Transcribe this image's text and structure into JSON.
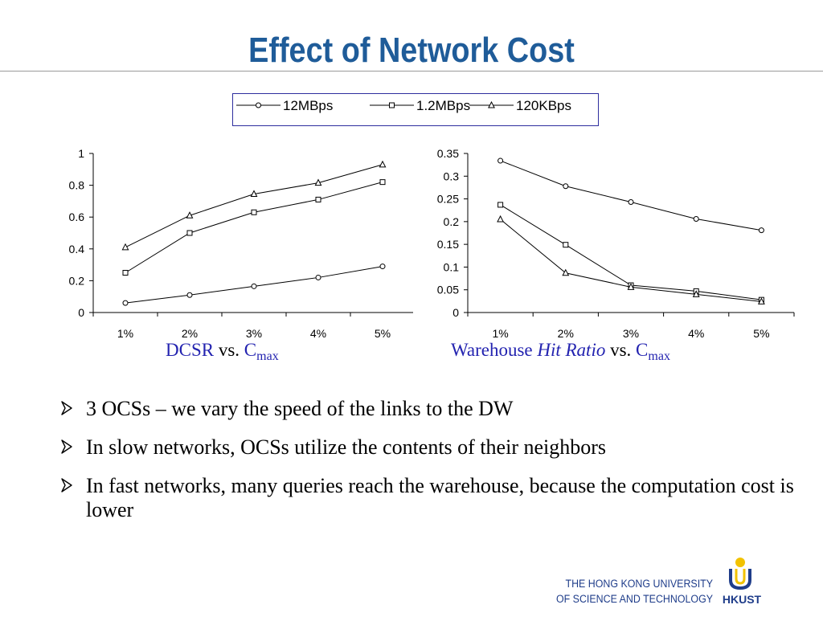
{
  "slide": {
    "title": "Effect of Network Cost"
  },
  "legend": {
    "entries": [
      {
        "label": "12MBps",
        "marker": "circle"
      },
      {
        "label": "1.2MBps",
        "marker": "square"
      },
      {
        "label": "120KBps",
        "marker": "triangle"
      }
    ]
  },
  "captions": {
    "left": {
      "main": "DCSR",
      "vs": "vs.",
      "var": "C",
      "sub": "max"
    },
    "right": {
      "main": "Warehouse",
      "italic": "Hit Ratio",
      "vs": "vs.",
      "var": "C",
      "sub": "max"
    }
  },
  "bullets": [
    "3 OCSs – we vary the speed of the links to the DW",
    "In slow networks, OCSs utilize the contents of their neighbors",
    "In fast networks, many queries reach the warehouse, because the computation cost is lower"
  ],
  "footer": {
    "line1": "THE HONG KONG UNIVERSITY",
    "line2": "OF SCIENCE AND TECHNOLOGY",
    "logo_text": "HKUST"
  },
  "colors": {
    "title": "#1f5c99",
    "caption": "#2323b0",
    "legend_border": "#2e2e9e",
    "footer": "#1f3d8a",
    "logo_blue": "#1f3d8a",
    "logo_gold": "#f2c200"
  },
  "chart_data": [
    {
      "type": "line",
      "categories": [
        "1%",
        "2%",
        "3%",
        "4%",
        "5%"
      ],
      "ylim": [
        0,
        1
      ],
      "yticks": [
        "0",
        "0.2",
        "0.4",
        "0.6",
        "0.8",
        "1"
      ],
      "grid": false,
      "series": [
        {
          "name": "12MBps",
          "marker": "circle",
          "values": [
            0.06,
            0.11,
            0.165,
            0.22,
            0.29
          ]
        },
        {
          "name": "1.2MBps",
          "marker": "square",
          "values": [
            0.25,
            0.5,
            0.63,
            0.71,
            0.82
          ]
        },
        {
          "name": "120KBps",
          "marker": "triangle",
          "values": [
            0.41,
            0.61,
            0.745,
            0.815,
            0.93
          ]
        }
      ]
    },
    {
      "type": "line",
      "categories": [
        "1%",
        "2%",
        "3%",
        "4%",
        "5%"
      ],
      "ylim": [
        0,
        0.35
      ],
      "yticks": [
        "0",
        "0.05",
        "0.1",
        "0.15",
        "0.2",
        "0.25",
        "0.3",
        "0.35"
      ],
      "grid": false,
      "series": [
        {
          "name": "12MBps",
          "marker": "circle",
          "values": [
            0.334,
            0.278,
            0.243,
            0.206,
            0.181
          ]
        },
        {
          "name": "1.2MBps",
          "marker": "square",
          "values": [
            0.237,
            0.149,
            0.06,
            0.047,
            0.028
          ]
        },
        {
          "name": "120KBps",
          "marker": "triangle",
          "values": [
            0.205,
            0.087,
            0.056,
            0.04,
            0.024
          ]
        }
      ]
    }
  ]
}
